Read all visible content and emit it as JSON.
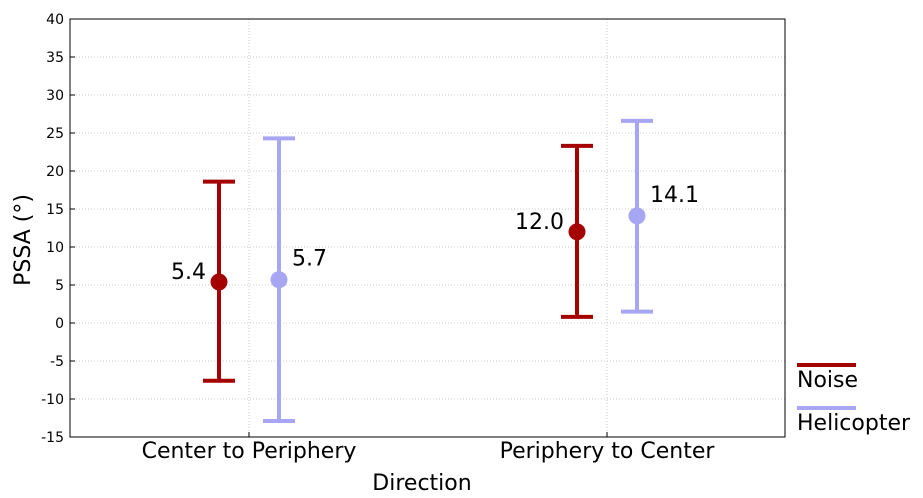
{
  "chart_data": {
    "type": "scatter",
    "subtype": "error-bar",
    "title": "",
    "xlabel": "Direction",
    "ylabel": "PSSA (°)",
    "ylim": [
      -15,
      40
    ],
    "yticks": [
      40,
      35,
      30,
      25,
      20,
      15,
      10,
      5,
      0,
      -5,
      -10,
      -15
    ],
    "categories": [
      "Center to Periphery",
      "Periphery to Center"
    ],
    "grid": true,
    "legend_position": "bottom-right, outside plot",
    "series": [
      {
        "name": "Noise",
        "color": "#a50000",
        "values": [
          5.4,
          12.0
        ],
        "labels": [
          "5.4",
          "12.0"
        ],
        "lower": [
          -7.6,
          0.8
        ],
        "upper": [
          18.6,
          23.3
        ]
      },
      {
        "name": "Helicopter",
        "color": "#a6a6f2",
        "values": [
          5.7,
          14.1
        ],
        "labels": [
          "5.7",
          "14.1"
        ],
        "lower": [
          -12.9,
          1.5
        ],
        "upper": [
          24.3,
          26.6
        ]
      }
    ]
  }
}
